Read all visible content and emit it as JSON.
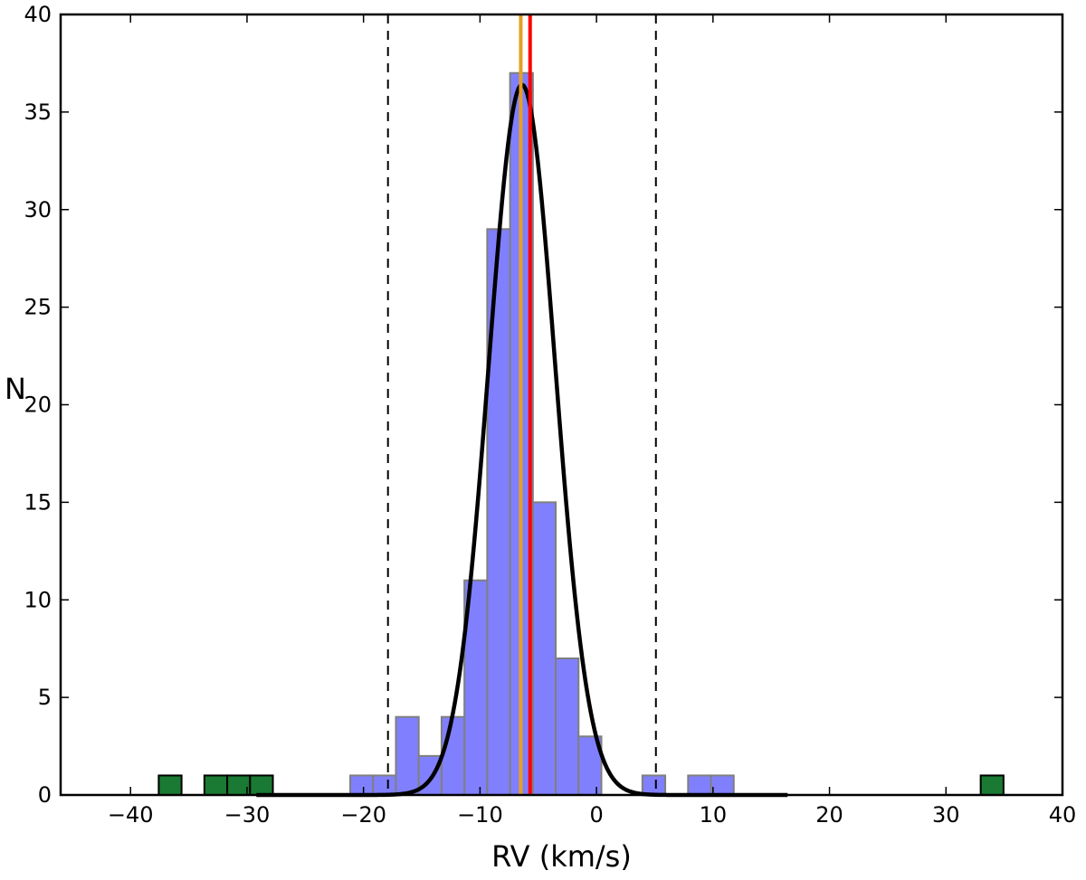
{
  "chart_data": {
    "type": "bar",
    "title": "",
    "xlabel": "RV (km/s)",
    "ylabel": "N",
    "xlim": [
      -46,
      40
    ],
    "ylim": [
      0,
      40
    ],
    "xticks": [
      -40,
      -30,
      -20,
      -10,
      0,
      10,
      20,
      30,
      40
    ],
    "xtick_labels": [
      "−40",
      "−30",
      "−20",
      "−10",
      "0",
      "10",
      "20",
      "30",
      "40"
    ],
    "yticks": [
      0,
      5,
      10,
      15,
      20,
      25,
      30,
      35,
      40
    ],
    "ytick_labels": [
      "0",
      "5",
      "10",
      "15",
      "20",
      "25",
      "30",
      "35",
      "40"
    ],
    "grid": false,
    "series": [
      {
        "kind": "histogram",
        "bin_width": 1.96,
        "color": "#8080ff",
        "edge_color": "#7f7f7f",
        "bins": [
          {
            "x0": -21.14,
            "count": 1
          },
          {
            "x0": -19.18,
            "count": 1
          },
          {
            "x0": -17.22,
            "count": 4
          },
          {
            "x0": -15.26,
            "count": 2
          },
          {
            "x0": -13.3,
            "count": 4
          },
          {
            "x0": -11.34,
            "count": 11
          },
          {
            "x0": -9.38,
            "count": 29
          },
          {
            "x0": -7.42,
            "count": 37
          },
          {
            "x0": -5.46,
            "count": 15
          },
          {
            "x0": -3.5,
            "count": 7
          },
          {
            "x0": -1.54,
            "count": 3
          },
          {
            "x0": 3.94,
            "count": 1
          },
          {
            "x0": 7.86,
            "count": 1
          },
          {
            "x0": 9.82,
            "count": 1
          }
        ]
      },
      {
        "kind": "histogram",
        "bin_width": 1.96,
        "color": "#1a7a33",
        "edge_color": "#000000",
        "bins": [
          {
            "x0": -37.58,
            "count": 1
          },
          {
            "x0": -33.66,
            "count": 1
          },
          {
            "x0": -31.7,
            "count": 1
          },
          {
            "x0": -29.74,
            "count": 1
          },
          {
            "x0": 32.98,
            "count": 1
          }
        ]
      },
      {
        "kind": "gaussian-fit",
        "amplitude": 36.4,
        "mean": -6.4,
        "sigma": 2.85,
        "color": "#000000"
      }
    ],
    "vertical_lines": [
      {
        "x": -17.9,
        "style": "dashed",
        "color": "#000000"
      },
      {
        "x": 5.1,
        "style": "dashed",
        "color": "#000000"
      },
      {
        "x": -6.5,
        "style": "solid",
        "color": "#e6a020"
      },
      {
        "x": -5.7,
        "style": "solid",
        "color": "#ff0000"
      }
    ]
  }
}
